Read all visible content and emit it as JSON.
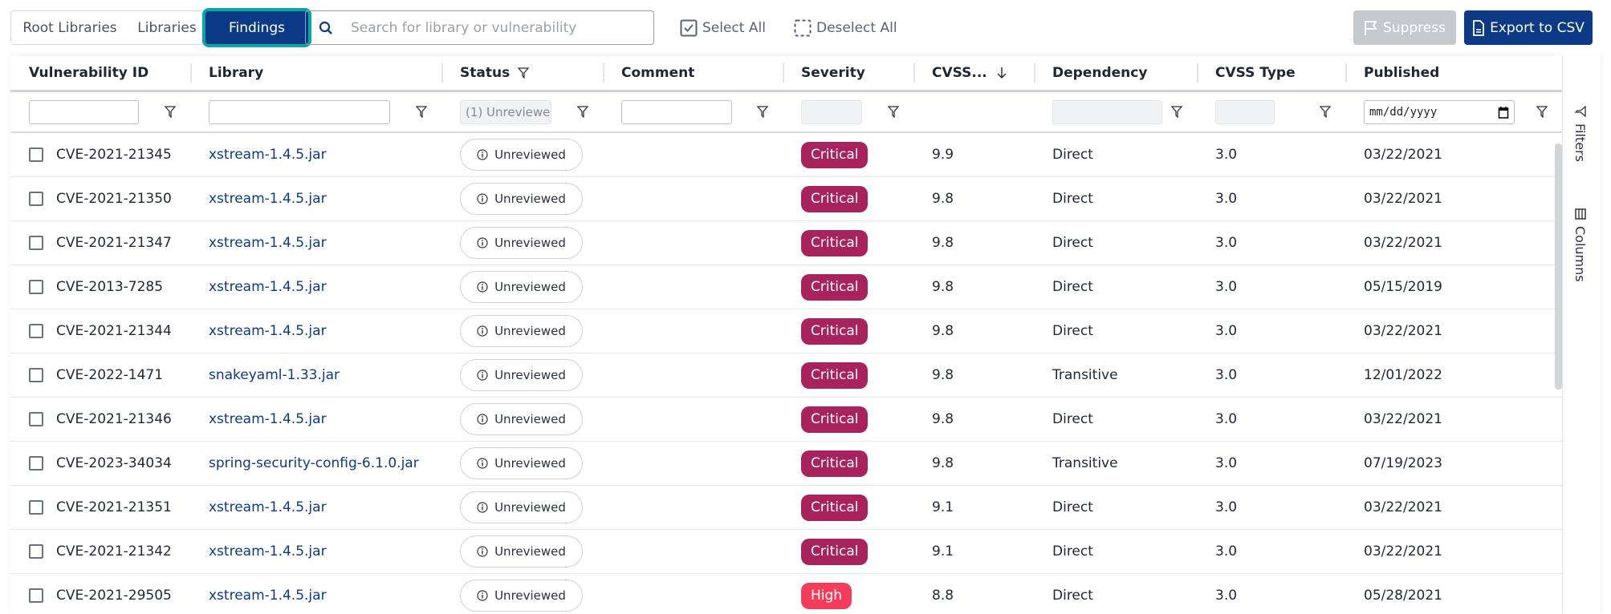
{
  "toolbar": {
    "tabs": [
      "Root Libraries",
      "Libraries",
      "Findings"
    ],
    "active_tab": "Findings",
    "search_placeholder": "Search for library or vulnerability",
    "select_all": "Select All",
    "deselect_all": "Deselect All",
    "suppress": "Suppress",
    "export": "Export to CSV"
  },
  "columns": [
    "Vulnerability ID",
    "Library",
    "Status",
    "Comment",
    "Severity",
    "CVSS...",
    "Dependency",
    "CVSS Type",
    "Published"
  ],
  "filters": {
    "status_value": "(1) Unreviewe",
    "date_placeholder": "mm/dd/yyyy"
  },
  "side_panel": {
    "filters": "Filters",
    "columns": "Columns"
  },
  "colors": {
    "accent": "#0c3a86",
    "critical": "#a8235e",
    "high": "#f43d5c",
    "focus_ring": "#0aa5a5"
  },
  "rows": [
    {
      "id": "CVE-2021-21345",
      "library": "xstream-1.4.5.jar",
      "status": "Unreviewed",
      "comment": "",
      "severity": "Critical",
      "cvss": "9.9",
      "dependency": "Direct",
      "cvss_type": "3.0",
      "published": "03/22/2021"
    },
    {
      "id": "CVE-2021-21350",
      "library": "xstream-1.4.5.jar",
      "status": "Unreviewed",
      "comment": "",
      "severity": "Critical",
      "cvss": "9.8",
      "dependency": "Direct",
      "cvss_type": "3.0",
      "published": "03/22/2021"
    },
    {
      "id": "CVE-2021-21347",
      "library": "xstream-1.4.5.jar",
      "status": "Unreviewed",
      "comment": "",
      "severity": "Critical",
      "cvss": "9.8",
      "dependency": "Direct",
      "cvss_type": "3.0",
      "published": "03/22/2021"
    },
    {
      "id": "CVE-2013-7285",
      "library": "xstream-1.4.5.jar",
      "status": "Unreviewed",
      "comment": "",
      "severity": "Critical",
      "cvss": "9.8",
      "dependency": "Direct",
      "cvss_type": "3.0",
      "published": "05/15/2019"
    },
    {
      "id": "CVE-2021-21344",
      "library": "xstream-1.4.5.jar",
      "status": "Unreviewed",
      "comment": "",
      "severity": "Critical",
      "cvss": "9.8",
      "dependency": "Direct",
      "cvss_type": "3.0",
      "published": "03/22/2021"
    },
    {
      "id": "CVE-2022-1471",
      "library": "snakeyaml-1.33.jar",
      "status": "Unreviewed",
      "comment": "",
      "severity": "Critical",
      "cvss": "9.8",
      "dependency": "Transitive",
      "cvss_type": "3.0",
      "published": "12/01/2022"
    },
    {
      "id": "CVE-2021-21346",
      "library": "xstream-1.4.5.jar",
      "status": "Unreviewed",
      "comment": "",
      "severity": "Critical",
      "cvss": "9.8",
      "dependency": "Direct",
      "cvss_type": "3.0",
      "published": "03/22/2021"
    },
    {
      "id": "CVE-2023-34034",
      "library": "spring-security-config-6.1.0.jar",
      "status": "Unreviewed",
      "comment": "",
      "severity": "Critical",
      "cvss": "9.8",
      "dependency": "Transitive",
      "cvss_type": "3.0",
      "published": "07/19/2023"
    },
    {
      "id": "CVE-2021-21351",
      "library": "xstream-1.4.5.jar",
      "status": "Unreviewed",
      "comment": "",
      "severity": "Critical",
      "cvss": "9.1",
      "dependency": "Direct",
      "cvss_type": "3.0",
      "published": "03/22/2021"
    },
    {
      "id": "CVE-2021-21342",
      "library": "xstream-1.4.5.jar",
      "status": "Unreviewed",
      "comment": "",
      "severity": "Critical",
      "cvss": "9.1",
      "dependency": "Direct",
      "cvss_type": "3.0",
      "published": "03/22/2021"
    },
    {
      "id": "CVE-2021-29505",
      "library": "xstream-1.4.5.jar",
      "status": "Unreviewed",
      "comment": "",
      "severity": "High",
      "cvss": "8.8",
      "dependency": "Direct",
      "cvss_type": "3.0",
      "published": "05/28/2021"
    }
  ]
}
